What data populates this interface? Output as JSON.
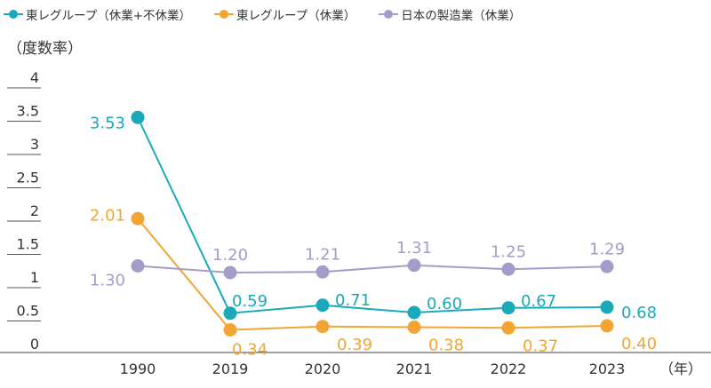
{
  "legend": {
    "items": [
      {
        "label": "東レグループ（休業+不休業）",
        "color": "#1aa9b9"
      },
      {
        "label": "東レグループ（休業）",
        "color": "#f2a533"
      },
      {
        "label": "日本の製造業（休業）",
        "color": "#a59cca"
      }
    ]
  },
  "y_unit": "（度数率）",
  "x_unit": "（年）",
  "chart_data": {
    "type": "line",
    "categories": [
      "1990",
      "2019",
      "2020",
      "2021",
      "2022",
      "2023"
    ],
    "y_ticks": [
      "0",
      "0.5",
      "1",
      "1.5",
      "2",
      "2.5",
      "3",
      "3.5",
      "4"
    ],
    "ylim": [
      0,
      4
    ],
    "series": [
      {
        "name": "東レグループ（休業+不休業）",
        "color": "#1aa9b9",
        "values": [
          3.53,
          0.59,
          0.71,
          0.6,
          0.67,
          0.68
        ],
        "labels": [
          "3.53",
          "0.59",
          "0.71",
          "0.60",
          "0.67",
          "0.68"
        ]
      },
      {
        "name": "東レグループ（休業）",
        "color": "#f2a533",
        "values": [
          2.01,
          0.34,
          0.39,
          0.38,
          0.37,
          0.4
        ],
        "labels": [
          "2.01",
          "0.34",
          "0.39",
          "0.38",
          "0.37",
          "0.40"
        ]
      },
      {
        "name": "日本の製造業（休業）",
        "color": "#a59cca",
        "values": [
          1.3,
          1.2,
          1.21,
          1.31,
          1.25,
          1.29
        ],
        "labels": [
          "1.30",
          "1.20",
          "1.21",
          "1.31",
          "1.25",
          "1.29"
        ]
      }
    ]
  }
}
